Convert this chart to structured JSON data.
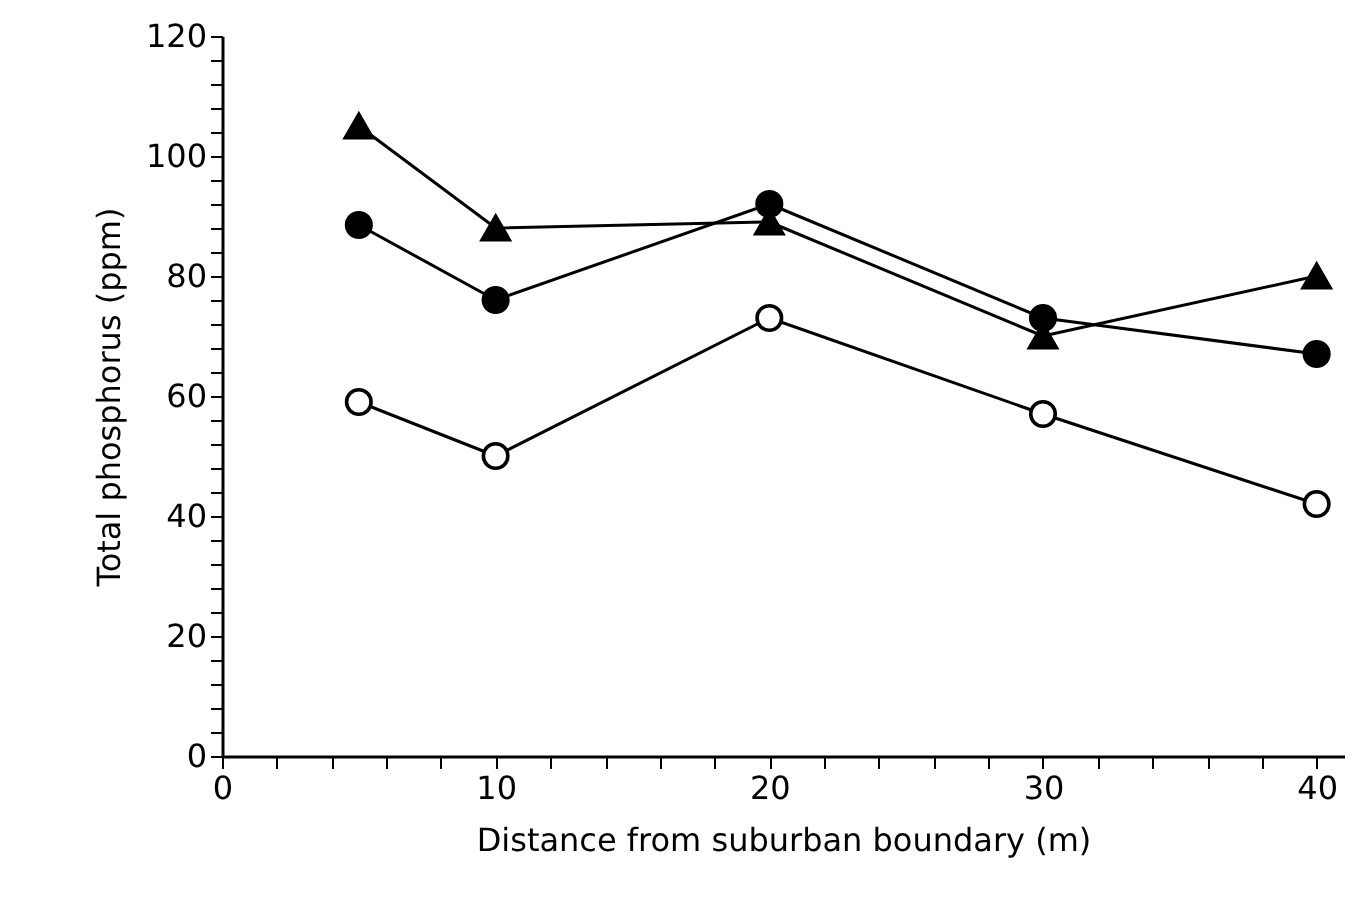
{
  "chart_data": {
    "type": "line",
    "xlabel": "Distance from suburban boundary (m)",
    "ylabel": "Total phosphorus (ppm)",
    "x": [
      5,
      10,
      20,
      30,
      40
    ],
    "xlim": [
      0,
      41
    ],
    "xticks": [
      0,
      {
        "value": 2,
        "label": null
      },
      {
        "value": 4,
        "label": null
      },
      {
        "value": 6,
        "label": null
      },
      {
        "value": 8,
        "label": null
      },
      10,
      {
        "value": 12,
        "label": null
      },
      {
        "value": 14,
        "label": null
      },
      {
        "value": 16,
        "label": null
      },
      {
        "value": 18,
        "label": null
      },
      20,
      {
        "value": 22,
        "label": null
      },
      {
        "value": 24,
        "label": null
      },
      {
        "value": 26,
        "label": null
      },
      {
        "value": 28,
        "label": null
      },
      30,
      {
        "value": 32,
        "label": null
      },
      {
        "value": 34,
        "label": null
      },
      {
        "value": 36,
        "label": null
      },
      {
        "value": 38,
        "label": null
      },
      40
    ],
    "ylim": [
      0,
      120
    ],
    "yticks": [
      0,
      {
        "value": 4,
        "label": null
      },
      {
        "value": 8,
        "label": null
      },
      {
        "value": 12,
        "label": null
      },
      {
        "value": 16,
        "label": null
      },
      20,
      {
        "value": 24,
        "label": null
      },
      {
        "value": 28,
        "label": null
      },
      {
        "value": 32,
        "label": null
      },
      {
        "value": 36,
        "label": null
      },
      40,
      {
        "value": 44,
        "label": null
      },
      {
        "value": 48,
        "label": null
      },
      {
        "value": 52,
        "label": null
      },
      {
        "value": 56,
        "label": null
      },
      60,
      {
        "value": 64,
        "label": null
      },
      {
        "value": 68,
        "label": null
      },
      {
        "value": 72,
        "label": null
      },
      {
        "value": 76,
        "label": null
      },
      80,
      {
        "value": 84,
        "label": null
      },
      {
        "value": 88,
        "label": null
      },
      {
        "value": 92,
        "label": null
      },
      {
        "value": 96,
        "label": null
      },
      100,
      {
        "value": 104,
        "label": null
      },
      {
        "value": 108,
        "label": null
      },
      {
        "value": 112,
        "label": null
      },
      {
        "value": 116,
        "label": null
      },
      120
    ],
    "grid": false,
    "line_style": "solid",
    "series": [
      {
        "color": "#000000",
        "marker": "triangle",
        "values": [
          105,
          88,
          89,
          70,
          80
        ]
      },
      {
        "color": "#000000",
        "marker": "circle",
        "values": [
          88.5,
          76,
          92,
          73,
          67
        ]
      },
      {
        "color": "#000000",
        "marker": "circle",
        "values": [
          59,
          50,
          73,
          57,
          42
        ]
      }
    ]
  }
}
